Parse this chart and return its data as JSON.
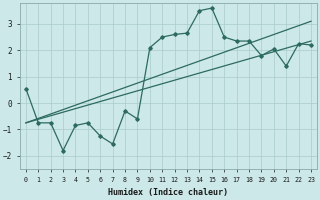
{
  "xlabel": "Humidex (Indice chaleur)",
  "ylabel": "",
  "background_color": "#cce8e8",
  "grid_color": "#aacccc",
  "line_color": "#2d6b5e",
  "xlim": [
    -0.5,
    23.5
  ],
  "ylim": [
    -2.5,
    3.8
  ],
  "yticks": [
    -2,
    -1,
    0,
    1,
    2,
    3
  ],
  "xticks": [
    0,
    1,
    2,
    3,
    4,
    5,
    6,
    7,
    8,
    9,
    10,
    11,
    12,
    13,
    14,
    15,
    16,
    17,
    18,
    19,
    20,
    21,
    22,
    23
  ],
  "noisy_x": [
    0,
    1,
    2,
    3,
    4,
    5,
    6,
    7,
    8,
    9,
    10,
    11,
    12,
    13,
    14,
    15,
    16,
    17,
    18,
    19,
    20,
    21,
    22,
    23
  ],
  "noisy_y": [
    0.55,
    -0.75,
    -0.75,
    -1.8,
    -0.85,
    -0.75,
    -1.25,
    -1.55,
    -0.3,
    -0.6,
    2.1,
    2.5,
    2.6,
    2.65,
    3.5,
    3.6,
    2.5,
    2.35,
    2.35,
    1.8,
    2.05,
    1.4,
    2.25,
    2.2
  ],
  "trend1_x": [
    0,
    23
  ],
  "trend1_y": [
    -0.75,
    2.35
  ],
  "trend2_x": [
    0,
    23
  ],
  "trend2_y": [
    -0.75,
    3.1
  ]
}
